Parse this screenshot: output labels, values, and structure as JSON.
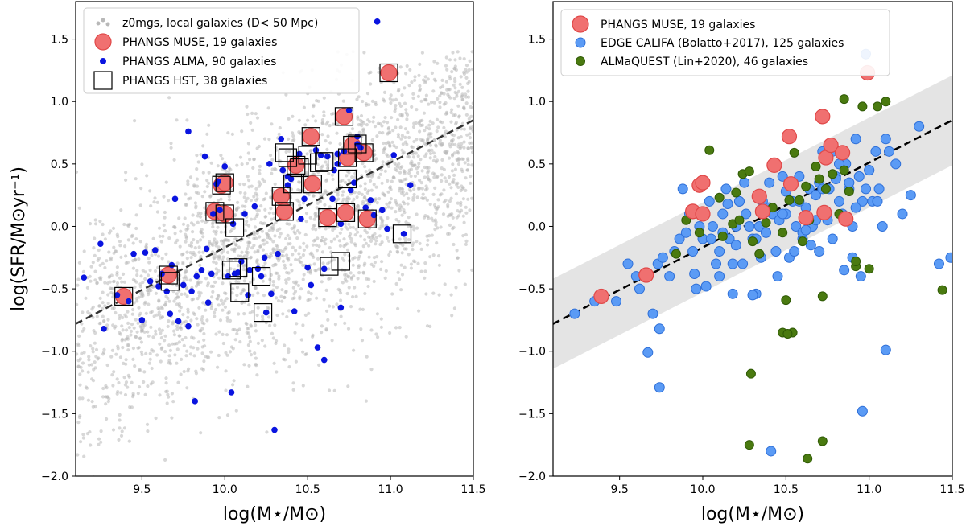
{
  "chart_data": [
    {
      "type": "scatter",
      "panel": "left",
      "xlabel": "log(M⋆/M⊙)",
      "ylabel": "log(SFR/M⊙yr⁻¹)",
      "xlim": [
        9.1,
        11.5
      ],
      "ylim": [
        -2.0,
        1.8
      ],
      "xticks": [
        "9.5",
        "10.0",
        "10.5",
        "11.0",
        "11.5"
      ],
      "yticks": [
        "−2.0",
        "−1.5",
        "−1.0",
        "−0.5",
        "0.0",
        "0.5",
        "1.0",
        "1.5"
      ],
      "main_sequence_line": {
        "x": [
          9.1,
          11.5
        ],
        "y": [
          -0.78,
          0.85
        ],
        "style": "dashed"
      },
      "legend_position": "top-left",
      "series": [
        {
          "name": "z0mgs, local galaxies (D< 50 Mpc)",
          "color": "#b8b8b8",
          "marker": "small-dot",
          "description_only": true
        },
        {
          "name": "PHANGS MUSE, 19 galaxies",
          "color": "#f07070",
          "marker": "large-circle",
          "x": [
            9.39,
            9.66,
            9.94,
            9.98,
            10.0,
            10.0,
            10.34,
            10.36,
            10.43,
            10.52,
            10.53,
            10.62,
            10.72,
            10.73,
            10.74,
            10.77,
            10.84,
            10.86,
            10.99
          ],
          "y": [
            -0.56,
            -0.39,
            0.12,
            0.33,
            0.35,
            0.1,
            0.24,
            0.12,
            0.49,
            0.72,
            0.34,
            0.07,
            0.88,
            0.11,
            0.55,
            0.65,
            0.59,
            0.06,
            1.23
          ]
        },
        {
          "name": "PHANGS ALMA, 90 galaxies",
          "color": "#0a14e0",
          "marker": "dot",
          "x": [
            9.15,
            9.25,
            9.27,
            9.35,
            9.42,
            9.45,
            9.5,
            9.52,
            9.55,
            9.6,
            9.62,
            9.65,
            9.67,
            9.68,
            9.72,
            9.75,
            9.78,
            9.8,
            9.83,
            9.86,
            9.89,
            9.9,
            9.92,
            9.95,
            9.97,
            10.0,
            10.02,
            10.05,
            10.08,
            10.1,
            10.12,
            10.15,
            10.2,
            10.22,
            10.25,
            10.28,
            10.3,
            10.32,
            10.35,
            10.38,
            10.4,
            10.45,
            10.48,
            10.5,
            10.52,
            10.55,
            10.58,
            10.6,
            10.62,
            10.65,
            10.68,
            10.7,
            10.75,
            10.78,
            10.8,
            10.82,
            10.85,
            10.9,
            10.95,
            11.02,
            11.08,
            11.12,
            9.78,
            9.88,
            9.96,
            10.04,
            10.18,
            10.27,
            10.42,
            10.56,
            10.6,
            10.66,
            10.7,
            10.72,
            10.76,
            10.8,
            10.88,
            10.92,
            9.7,
            9.58,
            9.82,
            10.06,
            10.14,
            10.38,
            10.46,
            10.34,
            10.68,
            10.98,
            9.93,
            10.24
          ],
          "y": [
            -0.41,
            -0.14,
            -0.82,
            -0.55,
            -0.6,
            -0.22,
            -0.75,
            -0.21,
            -0.44,
            -0.48,
            -0.38,
            -0.52,
            -0.7,
            -0.31,
            -0.76,
            -0.47,
            -0.8,
            -0.52,
            -0.4,
            -0.35,
            -0.18,
            -0.61,
            -0.38,
            0.34,
            0.13,
            0.48,
            -0.4,
            0.02,
            -0.37,
            -0.28,
            0.1,
            -0.35,
            -0.34,
            -0.4,
            -0.69,
            -0.54,
            -1.63,
            -0.22,
            0.45,
            0.4,
            0.38,
            0.58,
            0.22,
            -0.33,
            -0.47,
            0.61,
            0.57,
            -0.34,
            0.56,
            0.22,
            0.5,
            0.02,
            0.93,
            0.35,
            0.66,
            0.63,
            0.15,
            0.09,
            0.13,
            0.57,
            -0.06,
            0.33,
            0.76,
            0.56,
            0.36,
            -1.33,
            0.16,
            0.5,
            -0.68,
            -0.97,
            -1.07,
            0.45,
            -0.65,
            0.6,
            0.29,
            0.72,
            0.21,
            1.64,
            0.22,
            -0.19,
            -1.4,
            -0.38,
            -0.55,
            0.33,
            0.06,
            0.7,
            0.58,
            -0.02,
            0.1,
            -0.25
          ]
        },
        {
          "name": "PHANGS HST, 38 galaxies",
          "color": "#000000",
          "marker": "open-square",
          "x": [
            9.39,
            9.66,
            9.94,
            9.98,
            10.0,
            10.0,
            10.34,
            10.36,
            10.43,
            10.52,
            10.53,
            10.62,
            10.72,
            10.73,
            10.74,
            10.77,
            10.84,
            10.86,
            10.99,
            10.06,
            10.08,
            10.04,
            10.09,
            10.22,
            10.23,
            10.36,
            10.41,
            10.45,
            10.57,
            10.63,
            10.7,
            10.74,
            11.07,
            9.67,
            10.6,
            10.5,
            10.8,
            10.38
          ],
          "y": [
            -0.56,
            -0.39,
            0.12,
            0.33,
            0.35,
            0.1,
            0.24,
            0.12,
            0.49,
            0.72,
            0.34,
            0.07,
            0.88,
            0.11,
            0.55,
            0.65,
            0.59,
            0.06,
            1.23,
            -0.01,
            -0.33,
            -0.35,
            -0.53,
            -0.4,
            -0.69,
            0.59,
            0.34,
            0.47,
            0.51,
            -0.32,
            -0.28,
            0.38,
            -0.06,
            -0.44,
            0.52,
            0.57,
            0.66,
            0.55
          ]
        }
      ]
    },
    {
      "type": "scatter",
      "panel": "right",
      "xlabel": "log(M⋆/M⊙)",
      "ylabel": "",
      "xlim": [
        9.1,
        11.5
      ],
      "ylim": [
        -2.0,
        1.8
      ],
      "xticks": [
        "9.5",
        "10.0",
        "10.5",
        "11.0",
        "11.5"
      ],
      "yticks": [
        "−2.0",
        "−1.5",
        "−1.0",
        "−0.5",
        "0.0",
        "0.5",
        "1.0",
        "1.5"
      ],
      "main_sequence_line": {
        "x": [
          9.1,
          11.5
        ],
        "y": [
          -0.78,
          0.85
        ],
        "style": "dashed"
      },
      "scatter_band": {
        "half_width_dex": 0.36,
        "color": "#e4e4e4"
      },
      "legend_position": "top-left",
      "series": [
        {
          "name": "PHANGS MUSE, 19 galaxies",
          "color": "#f07070",
          "marker": "large-circle",
          "x": [
            9.39,
            9.66,
            9.94,
            9.98,
            10.0,
            10.0,
            10.34,
            10.36,
            10.43,
            10.52,
            10.53,
            10.62,
            10.72,
            10.73,
            10.74,
            10.77,
            10.84,
            10.86,
            10.99
          ],
          "y": [
            -0.56,
            -0.39,
            0.12,
            0.33,
            0.35,
            0.1,
            0.24,
            0.12,
            0.49,
            0.72,
            0.34,
            0.07,
            0.88,
            0.11,
            0.55,
            0.65,
            0.59,
            0.06,
            1.23
          ]
        },
        {
          "name": "EDGE CALIFA (Bolatto+2017), 125 galaxies",
          "color": "#5b9bf5",
          "marker": "circle",
          "x": [
            9.23,
            9.35,
            9.48,
            9.55,
            9.6,
            9.62,
            9.67,
            9.7,
            9.73,
            9.74,
            9.76,
            9.8,
            9.83,
            9.86,
            9.88,
            9.9,
            9.92,
            9.94,
            9.96,
            9.98,
            10.0,
            10.02,
            10.04,
            10.06,
            10.08,
            10.1,
            10.12,
            10.14,
            10.16,
            10.18,
            10.2,
            10.22,
            10.24,
            10.26,
            10.28,
            10.3,
            10.32,
            10.34,
            10.36,
            10.38,
            10.4,
            10.42,
            10.44,
            10.46,
            10.48,
            10.5,
            10.52,
            10.54,
            10.56,
            10.58,
            10.6,
            10.62,
            10.64,
            10.66,
            10.68,
            10.7,
            10.72,
            10.74,
            10.76,
            10.78,
            10.8,
            10.82,
            10.84,
            10.86,
            10.88,
            10.9,
            10.92,
            10.94,
            10.96,
            10.98,
            11.0,
            11.02,
            11.04,
            11.06,
            11.08,
            11.1,
            11.12,
            11.16,
            11.2,
            11.25,
            11.3,
            11.42,
            11.49,
            9.74,
            9.67,
            10.41,
            10.96,
            11.1,
            10.18,
            10.3,
            10.45,
            10.55,
            10.65,
            10.75,
            10.85,
            10.95,
            11.05,
            9.95,
            10.05,
            10.15,
            10.25,
            10.35,
            10.5,
            10.6,
            10.7,
            10.8,
            10.9,
            11.0,
            10.1,
            10.2,
            10.4,
            10.58,
            10.68,
            10.78,
            10.88,
            10.98,
            10.12,
            10.22,
            10.32,
            10.48,
            10.62,
            10.72,
            10.82,
            10.92,
            10.38
          ],
          "y": [
            -0.7,
            -0.6,
            -0.6,
            -0.3,
            -0.4,
            -0.5,
            -0.4,
            -0.7,
            -0.3,
            -0.82,
            -0.25,
            -0.4,
            -0.2,
            -0.1,
            0.3,
            -0.05,
            0.1,
            -0.2,
            -0.5,
            0.0,
            -0.1,
            -0.48,
            0.2,
            0.0,
            -0.3,
            -0.2,
            0.1,
            0.3,
            -0.1,
            -0.54,
            0.0,
            0.2,
            -0.3,
            0.1,
            0.0,
            -0.1,
            -0.54,
            0.0,
            0.2,
            -0.05,
            0.35,
            0.1,
            -0.2,
            0.05,
            0.4,
            0.1,
            -0.25,
            0.2,
            0.0,
            0.4,
            -0.1,
            0.15,
            0.3,
            0.0,
            0.25,
            -0.2,
            0.6,
            0.1,
            0.3,
            -0.1,
            0.4,
            0.2,
            0.1,
            0.5,
            0.3,
            0.0,
            0.7,
            0.4,
            0.2,
            0.3,
            0.45,
            0.2,
            0.6,
            0.3,
            0.0,
            0.7,
            0.6,
            0.5,
            0.1,
            0.25,
            0.8,
            -0.3,
            -0.25,
            -1.29,
            -1.01,
            -1.8,
            -1.48,
            -0.99,
            -0.3,
            -0.55,
            -0.4,
            -0.2,
            -0.15,
            0.05,
            -0.35,
            -0.4,
            0.2,
            -0.38,
            -0.1,
            0.18,
            0.35,
            -0.25,
            0.28,
            -0.05,
            0.35,
            0.38,
            -0.25,
            0.45,
            -0.4,
            -0.15,
            0.15,
            0.2,
            0.05,
            0.6,
            0.35,
            1.38,
            -0.05,
            0.2,
            -0.1,
            0.1,
            -0.03,
            0.3,
            0.5,
            0.15,
            -0.05
          ]
        },
        {
          "name": "ALMaQUEST (Lin+2020), 46 galaxies",
          "color": "#4a7a10",
          "marker": "circle",
          "x": [
            9.84,
            9.9,
            9.98,
            10.04,
            10.1,
            10.12,
            10.18,
            10.2,
            10.22,
            10.24,
            10.28,
            10.3,
            10.34,
            10.38,
            10.42,
            10.48,
            10.5,
            10.52,
            10.55,
            10.58,
            10.6,
            10.64,
            10.68,
            10.7,
            10.72,
            10.74,
            10.78,
            10.82,
            10.85,
            10.88,
            10.92,
            10.96,
            11.0,
            11.05,
            11.1,
            11.44,
            10.29,
            10.28,
            10.63,
            10.72,
            10.54,
            10.48,
            10.51,
            10.85,
            10.92,
            10.62
          ],
          "y": [
            -0.22,
            0.05,
            -0.05,
            0.61,
            0.23,
            -0.08,
            0.02,
            0.27,
            0.05,
            0.42,
            0.44,
            -0.12,
            -0.22,
            0.03,
            0.15,
            -0.05,
            -0.59,
            0.21,
            0.59,
            0.21,
            -0.12,
            0.05,
            0.48,
            0.38,
            -0.56,
            0.3,
            0.42,
            0.1,
            1.02,
            0.28,
            -0.32,
            0.96,
            -0.34,
            0.96,
            1.0,
            -0.51,
            -1.18,
            -1.75,
            -1.86,
            -1.72,
            -0.85,
            -0.85,
            -0.86,
            0.45,
            -0.28,
            0.32
          ]
        }
      ]
    }
  ]
}
